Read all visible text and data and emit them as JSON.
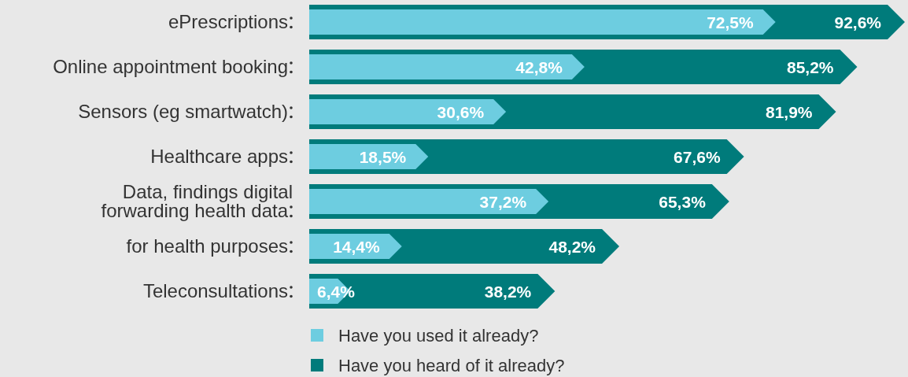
{
  "chart_data": {
    "type": "bar",
    "orientation": "horizontal",
    "legend": "bottom",
    "categories": [
      "ePrescriptions",
      "Online appointment booking",
      "Sensors (eg smartwatch)",
      "Healthcare apps",
      "Data, findings digital\nforwarding health data",
      "for health purposes",
      "Teleconsultations"
    ],
    "series": [
      {
        "name": "Have you used it already?",
        "color": "#6dcde0",
        "values": [
          72.5,
          42.8,
          30.6,
          18.5,
          37.2,
          14.4,
          6.4
        ],
        "value_labels": [
          "72,5%",
          "42,8%",
          "30,6%",
          "18,5%",
          "37,2%",
          "14,4%",
          "6,4%"
        ]
      },
      {
        "name": "Have you heard of it already?",
        "color": "#007b7b",
        "values": [
          92.6,
          85.2,
          81.9,
          67.6,
          65.3,
          48.2,
          38.2
        ],
        "value_labels": [
          "92,6%",
          "85,2%",
          "81,9%",
          "67,6%",
          "65,3%",
          "48,2%",
          "38,2%"
        ]
      }
    ]
  }
}
